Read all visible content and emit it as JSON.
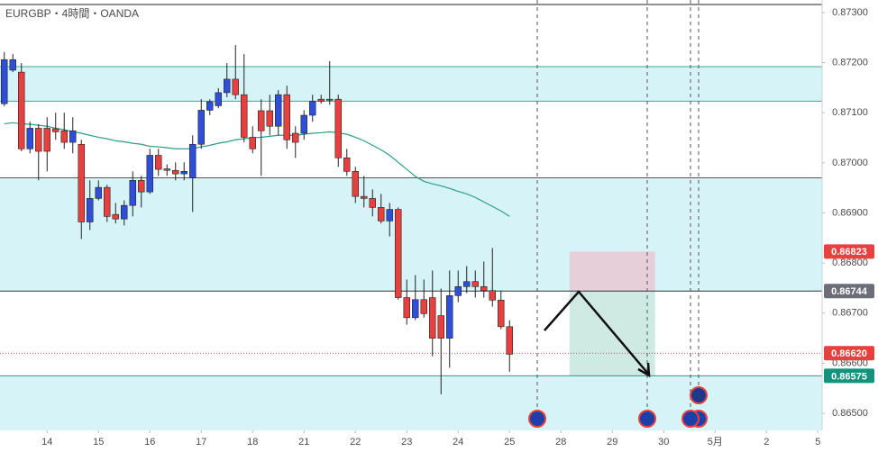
{
  "chart_data": {
    "type": "candlestick",
    "title": "EURGBP・4時間・OANDA",
    "open": [
      0.87118,
      0.87185,
      0.87181,
      0.87028,
      0.87069,
      0.87069,
      0.87068,
      0.87064,
      0.87041,
      0.87037,
      0.86882,
      0.86929,
      0.86951,
      0.86897,
      0.86888,
      0.86915,
      0.86965,
      0.86942,
      0.87015,
      0.86988,
      0.86985,
      0.86978,
      0.8697,
      0.87037,
      0.87105,
      0.87114,
      0.8714,
      0.87167,
      0.87136,
      0.87051,
      0.87104,
      0.87104,
      0.87073,
      0.87136,
      0.87059,
      0.87059,
      0.87095,
      0.87127,
      0.87127,
      0.87127,
      0.8701,
      0.86983,
      0.86933,
      0.86929,
      0.86911,
      0.86884,
      0.86907,
      0.86731,
      0.86691,
      0.86727,
      0.86731,
      0.86695,
      0.8665,
      0.86735,
      0.86753,
      0.86763,
      0.86753,
      0.86745,
      0.86726,
      0.86673
    ],
    "high": [
      0.87221,
      0.87217,
      0.87199,
      0.87082,
      0.87077,
      0.87091,
      0.871,
      0.871,
      0.87091,
      0.87046,
      0.86965,
      0.86965,
      0.86956,
      0.8692,
      0.86925,
      0.86983,
      0.86974,
      0.87028,
      0.87028,
      0.86997,
      0.87001,
      0.87001,
      0.87055,
      0.87127,
      0.87127,
      0.87149,
      0.87199,
      0.87235,
      0.87217,
      0.87073,
      0.87127,
      0.87136,
      0.87145,
      0.87154,
      0.87073,
      0.87105,
      0.87136,
      0.87136,
      0.87203,
      0.87136,
      0.87028,
      0.86992,
      0.86974,
      0.86947,
      0.86938,
      0.8692,
      0.86911,
      0.86767,
      0.86776,
      0.86767,
      0.86785,
      0.86749,
      0.86785,
      0.86785,
      0.86794,
      0.86785,
      0.86803,
      0.8683,
      0.86745,
      0.86686
    ],
    "low": [
      0.87113,
      0.87181,
      0.87023,
      0.87019,
      0.86965,
      0.86983,
      0.87046,
      0.87028,
      0.87019,
      0.86848,
      0.86866,
      0.86925,
      0.86882,
      0.86879,
      0.86875,
      0.86893,
      0.86911,
      0.86938,
      0.86974,
      0.86974,
      0.86965,
      0.86965,
      0.86902,
      0.87028,
      0.87095,
      0.87109,
      0.87131,
      0.87127,
      0.87041,
      0.87019,
      0.86974,
      0.87055,
      0.87055,
      0.87028,
      0.8701,
      0.87046,
      0.87082,
      0.87118,
      0.87116,
      0.86992,
      0.86974,
      0.8692,
      0.86911,
      0.86893,
      0.86879,
      0.86853,
      0.86727,
      0.86677,
      0.86686,
      0.86691,
      0.86614,
      0.86538,
      0.86591,
      0.86722,
      0.8674,
      0.86731,
      0.86731,
      0.86713,
      0.86668,
      0.86583
    ],
    "close": [
      0.87206,
      0.87206,
      0.87028,
      0.87069,
      0.87023,
      0.87023,
      0.87062,
      0.87041,
      0.87064,
      0.86882,
      0.86929,
      0.86951,
      0.86893,
      0.86888,
      0.86915,
      0.86965,
      0.86942,
      0.87015,
      0.86987,
      0.86985,
      0.86978,
      0.86983,
      0.87037,
      0.87105,
      0.87122,
      0.8714,
      0.87167,
      0.87136,
      0.87051,
      0.87028,
      0.87064,
      0.87073,
      0.87136,
      0.87046,
      0.87041,
      0.87095,
      0.87123,
      0.87123,
      0.87125,
      0.8701,
      0.86983,
      0.86933,
      0.86929,
      0.86911,
      0.86884,
      0.86907,
      0.86731,
      0.86691,
      0.86727,
      0.86699,
      0.8665,
      0.8665,
      0.86735,
      0.86753,
      0.86763,
      0.86753,
      0.86745,
      0.86726,
      0.86673,
      0.86618
    ],
    "up_color": "#2f4fd9",
    "down_color": "#e8403f",
    "moving_average": {
      "color": "#2a9d8a",
      "values": [
        0.87078,
        0.8708,
        0.87078,
        0.87077,
        0.87075,
        0.87073,
        0.87069,
        0.87066,
        0.87062,
        0.87059,
        0.87055,
        0.87051,
        0.87048,
        0.87044,
        0.87042,
        0.87039,
        0.87037,
        0.87033,
        0.87032,
        0.8703,
        0.87028,
        0.87028,
        0.87028,
        0.87032,
        0.87035,
        0.87039,
        0.87042,
        0.87046,
        0.87048,
        0.8705,
        0.87051,
        0.87053,
        0.87055,
        0.87055,
        0.87055,
        0.87057,
        0.87059,
        0.8706,
        0.87062,
        0.8706,
        0.87057,
        0.87051,
        0.87044,
        0.87035,
        0.87026,
        0.87015,
        0.87001,
        0.86987,
        0.86973,
        0.86963,
        0.86958,
        0.86954,
        0.86949,
        0.86943,
        0.86938,
        0.86931,
        0.86922,
        0.86913,
        0.86904,
        0.86893
      ]
    },
    "xlim": [
      -0.5,
      95.5
    ],
    "xticks": [
      {
        "value": 5,
        "label": "14"
      },
      {
        "value": 11,
        "label": "15"
      },
      {
        "value": 17,
        "label": "16"
      },
      {
        "value": 23,
        "label": "17"
      },
      {
        "value": 29,
        "label": "18"
      },
      {
        "value": 35,
        "label": "21"
      },
      {
        "value": 41,
        "label": "22"
      },
      {
        "value": 47,
        "label": "23"
      },
      {
        "value": 53,
        "label": "24"
      },
      {
        "value": 59,
        "label": "25"
      },
      {
        "value": 65,
        "label": "28"
      },
      {
        "value": 71,
        "label": "29"
      },
      {
        "value": 77,
        "label": "30"
      },
      {
        "value": 83,
        "label": "5月"
      },
      {
        "value": 89,
        "label": "2"
      },
      {
        "value": 95,
        "label": "5"
      }
    ],
    "ylim": [
      0.86466,
      0.87325
    ],
    "yticks": [
      {
        "value": 0.873,
        "label": "0.87300"
      },
      {
        "value": 0.872,
        "label": "0.87200"
      },
      {
        "value": 0.871,
        "label": "0.87100"
      },
      {
        "value": 0.87,
        "label": "0.87000"
      },
      {
        "value": 0.869,
        "label": "0.86900"
      },
      {
        "value": 0.868,
        "label": "0.86800"
      },
      {
        "value": 0.867,
        "label": "0.86700"
      },
      {
        "value": 0.866,
        "label": "0.86600"
      },
      {
        "value": 0.865,
        "label": "0.86500"
      }
    ],
    "zones": [
      [
        0.87192,
        0.87123
      ],
      [
        0.8697,
        0.86744
      ],
      [
        0.86575,
        null
      ]
    ],
    "zone_color": "#d6f4f7",
    "hlines": [
      {
        "value": 0.87192,
        "color": "#3aa99a"
      },
      {
        "value": 0.87123,
        "color": "#3aa99a"
      },
      {
        "value": 0.8697,
        "color": "#555555"
      },
      {
        "value": 0.86744,
        "color": "#333333"
      },
      {
        "value": 0.86575,
        "color": "#2a9d8a"
      },
      {
        "value": 0.8662,
        "color": "#e8403f",
        "dotted": true
      }
    ],
    "position": {
      "x_from": 66,
      "x_to": 76,
      "stop": 0.86823,
      "entry": 0.86744,
      "target": 0.86575,
      "stop_color": "#e6cfd8",
      "target_color": "#cfeae2"
    },
    "price_tags": [
      {
        "value": 0.86823,
        "label": "0.86823",
        "color": "#e8403f"
      },
      {
        "value": 0.86744,
        "label": "0.86744",
        "color": "#6b6e78"
      },
      {
        "value": 0.8662,
        "label": "0.86620",
        "color": "#e8403f"
      },
      {
        "value": 0.86575,
        "label": "0.86575",
        "color": "#13937e"
      }
    ]
  }
}
